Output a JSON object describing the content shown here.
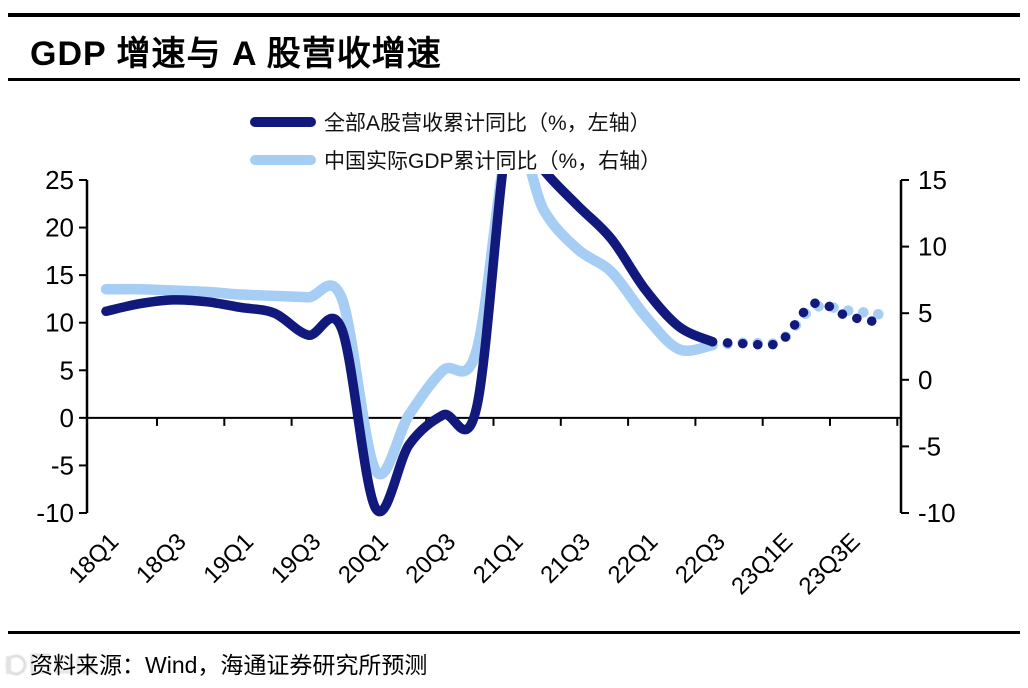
{
  "title": "GDP 增速与 A 股营收增速",
  "legend": {
    "items": [
      {
        "label": "全部A股营收累计同比（%，左轴）",
        "color": "#12197D"
      },
      {
        "label": "中国实际GDP累计同比（%，右轴）",
        "color": "#A6CDF4"
      }
    ]
  },
  "footer": {
    "source": "资料来源：Wind，海通证券研究所预测"
  },
  "chart_data": {
    "type": "line",
    "title": "GDP 增速与 A 股营收增速",
    "categories": [
      "18Q1",
      "18Q2",
      "18Q3",
      "18Q4",
      "19Q1",
      "19Q2",
      "19Q3",
      "19Q4",
      "20Q1",
      "20Q2",
      "20Q3",
      "20Q4",
      "21Q1",
      "21Q2",
      "21Q3",
      "21Q4",
      "22Q1",
      "22Q2",
      "22Q3",
      "22Q4",
      "23Q1E",
      "23Q2E",
      "23Q3E",
      "23Q4E"
    ],
    "x_tick_labels": [
      "18Q1",
      "18Q3",
      "19Q1",
      "19Q3",
      "20Q1",
      "20Q3",
      "21Q1",
      "21Q3",
      "22Q1",
      "22Q3",
      "23Q1E",
      "23Q3E"
    ],
    "series": [
      {
        "name": "全部A股营收累计同比（%，左轴）",
        "axis": "left",
        "color": "#12197D",
        "solid_until": "22Q3",
        "dotted_forecast_from": "22Q4",
        "values": [
          11.2,
          12.0,
          12.4,
          12.2,
          11.6,
          11.0,
          8.7,
          9.3,
          -9.5,
          -2.8,
          0.3,
          1.1,
          31.0,
          26.0,
          22.3,
          18.8,
          13.5,
          9.6,
          8.0,
          7.8,
          8.0,
          12.0,
          10.7,
          10.0
        ]
      },
      {
        "name": "中国实际GDP累计同比（%，右轴）",
        "axis": "right",
        "color": "#A6CDF4",
        "solid_until": "22Q3",
        "dotted_forecast_from": "22Q4",
        "values": [
          6.8,
          6.8,
          6.7,
          6.6,
          6.4,
          6.3,
          6.2,
          6.1,
          -6.8,
          -2.6,
          0.7,
          2.2,
          18.3,
          12.7,
          9.8,
          8.1,
          4.8,
          2.3,
          2.6,
          2.8,
          2.9,
          5.4,
          5.2,
          4.9
        ]
      }
    ],
    "left_axis": {
      "range": [
        -10,
        25
      ],
      "ticks": [
        25,
        20,
        15,
        10,
        5,
        0,
        -5,
        -10
      ]
    },
    "right_axis": {
      "range": [
        -10,
        15
      ],
      "ticks": [
        15,
        10,
        5,
        0,
        -5,
        -10
      ]
    },
    "grid": false,
    "legend_position": "top"
  }
}
